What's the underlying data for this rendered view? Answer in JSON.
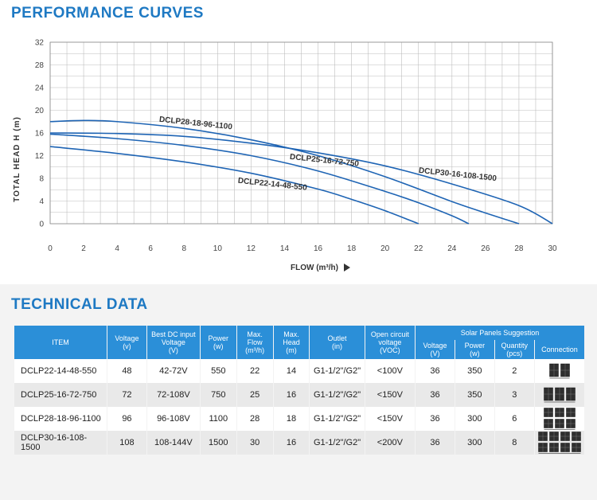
{
  "sections": {
    "performance_title": "PERFORMANCE CURVES",
    "technical_title": "TECHNICAL DATA"
  },
  "chart_data": {
    "type": "line",
    "xlabel": "FLOW (m³/h)",
    "ylabel": "TOTAL HEAD H (m)",
    "xlim": [
      0,
      30
    ],
    "ylim": [
      0,
      32
    ],
    "x_ticks": [
      0,
      2,
      4,
      6,
      8,
      10,
      12,
      14,
      16,
      18,
      20,
      22,
      24,
      26,
      28,
      30
    ],
    "y_ticks": [
      0,
      4,
      8,
      12,
      16,
      20,
      24,
      28,
      32
    ],
    "grid": true,
    "line_color": "#1e64b4",
    "series": [
      {
        "name": "DCLP22-14-48-550",
        "x": [
          0,
          4,
          8,
          12,
          16,
          18,
          20,
          22
        ],
        "y": [
          13.6,
          12.4,
          10.9,
          8.9,
          6.1,
          4.3,
          2.3,
          0
        ]
      },
      {
        "name": "DCLP25-16-72-750",
        "x": [
          0,
          4,
          8,
          12,
          16,
          20,
          22,
          24,
          25
        ],
        "y": [
          15.8,
          15.0,
          13.8,
          12.0,
          9.3,
          5.7,
          3.7,
          1.4,
          0
        ]
      },
      {
        "name": "DCLP28-18-96-1100",
        "x": [
          0,
          2,
          4,
          8,
          12,
          16,
          20,
          24,
          26,
          28
        ],
        "y": [
          18.0,
          18.2,
          18.0,
          16.8,
          14.8,
          12.0,
          8.3,
          3.9,
          1.9,
          0
        ]
      },
      {
        "name": "DCLP30-16-108-1500",
        "x": [
          0,
          4,
          8,
          12,
          16,
          20,
          24,
          28,
          30
        ],
        "y": [
          16.0,
          15.9,
          15.4,
          14.2,
          12.5,
          10.2,
          7.0,
          3.2,
          0
        ]
      }
    ],
    "labels": [
      {
        "text": "DCLP28-18-96-1100",
        "x": 6.5,
        "y": 18.0
      },
      {
        "text": "DCLP25-16-72-750",
        "x": 14.3,
        "y": 11.4
      },
      {
        "text": "DCLP22-14-48-550",
        "x": 11.2,
        "y": 7.2
      },
      {
        "text": "DCLP30-16-108-1500",
        "x": 22.0,
        "y": 9.0
      }
    ]
  },
  "table": {
    "headers": {
      "item": "ITEM",
      "voltage": [
        "Voltage",
        "(v)"
      ],
      "best_dc": [
        "Best DC input",
        "Voltage",
        "(V)"
      ],
      "power": [
        "Power",
        "(w)"
      ],
      "max_flow": [
        "Max.",
        "Flow",
        "(m³/h)"
      ],
      "max_head": [
        "Max.",
        "Head",
        "(m)"
      ],
      "outlet": [
        "Outlet",
        "(in)"
      ],
      "voc": [
        "Open circuit",
        "voltage",
        "(VOC)"
      ],
      "solar_group": "Solar Panels Suggestion",
      "sp_voltage": [
        "Voltage",
        "(V)"
      ],
      "sp_power": [
        "Power",
        "(w)"
      ],
      "sp_quantity": [
        "Quantity",
        "(pcs)"
      ],
      "sp_connection": "Connection"
    },
    "rows": [
      {
        "item": "DCLP22-14-48-550",
        "voltage": "48",
        "best_dc": "42-72V",
        "power": "550",
        "flow": "22",
        "head": "14",
        "outlet": "G1-1/2\"/G2\"",
        "voc": "<100V",
        "sp_voltage": "36",
        "sp_power": "350",
        "sp_qty": "2",
        "panel_cols": 2,
        "panel_rows": 1
      },
      {
        "item": "DCLP25-16-72-750",
        "voltage": "72",
        "best_dc": "72-108V",
        "power": "750",
        "flow": "25",
        "head": "16",
        "outlet": "G1-1/2\"/G2\"",
        "voc": "<150V",
        "sp_voltage": "36",
        "sp_power": "350",
        "sp_qty": "3",
        "panel_cols": 3,
        "panel_rows": 1
      },
      {
        "item": "DCLP28-18-96-1100",
        "voltage": "96",
        "best_dc": "96-108V",
        "power": "1100",
        "flow": "28",
        "head": "18",
        "outlet": "G1-1/2\"/G2\"",
        "voc": "<150V",
        "sp_voltage": "36",
        "sp_power": "300",
        "sp_qty": "6",
        "panel_cols": 3,
        "panel_rows": 2
      },
      {
        "item": "DCLP30-16-108-1500",
        "voltage": "108",
        "best_dc": "108-144V",
        "power": "1500",
        "flow": "30",
        "head": "16",
        "outlet": "G1-1/2\"/G2\"",
        "voc": "<200V",
        "sp_voltage": "36",
        "sp_power": "300",
        "sp_qty": "8",
        "panel_cols": 4,
        "panel_rows": 2
      }
    ]
  }
}
